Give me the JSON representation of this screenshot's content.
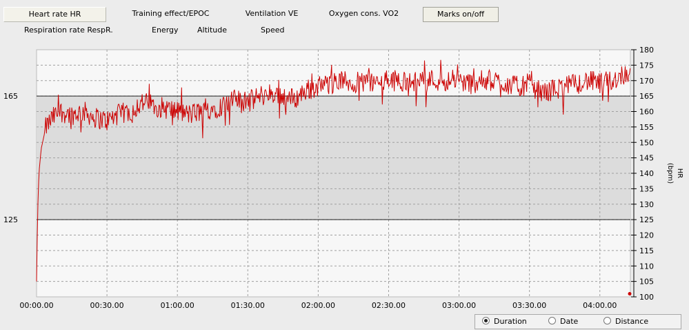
{
  "tabs": {
    "row1": [
      "Heart rate HR",
      "Training effect/EPOC",
      "Ventilation VE",
      "Oxygen cons. VO2",
      "Marks on/off"
    ],
    "row2": [
      "Respiration rate RespR.",
      "Energy",
      "Altitude",
      "Speed"
    ]
  },
  "chart_data": {
    "type": "line",
    "ylabel": "HR",
    "yunit": "(bpm)",
    "ylim": [
      100,
      180
    ],
    "yticks": [
      100,
      105,
      110,
      115,
      120,
      125,
      130,
      135,
      140,
      145,
      150,
      155,
      160,
      165,
      170,
      175,
      180
    ],
    "xlim_seconds": [
      0,
      15180
    ],
    "xticks": [
      "00:00.00",
      "00:30.00",
      "01:00.00",
      "01:30.00",
      "02:00.00",
      "02:30.00",
      "03:00.00",
      "03:30.00",
      "04:00.00"
    ],
    "zone": {
      "low": 125,
      "high": 165,
      "low_label": "125",
      "high_label": "165"
    },
    "grid": true,
    "series": [
      {
        "color": "#cc0000",
        "x": [
          0,
          30,
          60,
          120,
          240,
          420,
          600,
          900,
          1200,
          1500,
          1800,
          2100,
          2400,
          2700,
          3000,
          3300,
          3600,
          3900,
          4200,
          4500,
          4800,
          5100,
          5400,
          5700,
          6000,
          6300,
          6600,
          6900,
          7200,
          7500,
          7800,
          8100,
          8400,
          8700,
          9000,
          9300,
          9600,
          9900,
          10200,
          10500,
          10800,
          11100,
          11400,
          11700,
          12000,
          12300,
          12600,
          12900,
          13200,
          13500,
          13800,
          14100,
          14400,
          14700,
          15000,
          15180
        ],
        "y": [
          105,
          128,
          140,
          148,
          155,
          158,
          160,
          159,
          160,
          158,
          157,
          159,
          160,
          163,
          162,
          161,
          160,
          159,
          160,
          161,
          162,
          164,
          163,
          165,
          166,
          165,
          164,
          167,
          168,
          169,
          170,
          169,
          170,
          169,
          170,
          170,
          169,
          171,
          170,
          170,
          170,
          169,
          170,
          170,
          169,
          168,
          169,
          166,
          167,
          168,
          169,
          170,
          169,
          170,
          172,
          173
        ]
      }
    ]
  },
  "duration_options": {
    "selected": "Duration",
    "options": [
      "Duration",
      "Date",
      "Distance"
    ]
  }
}
